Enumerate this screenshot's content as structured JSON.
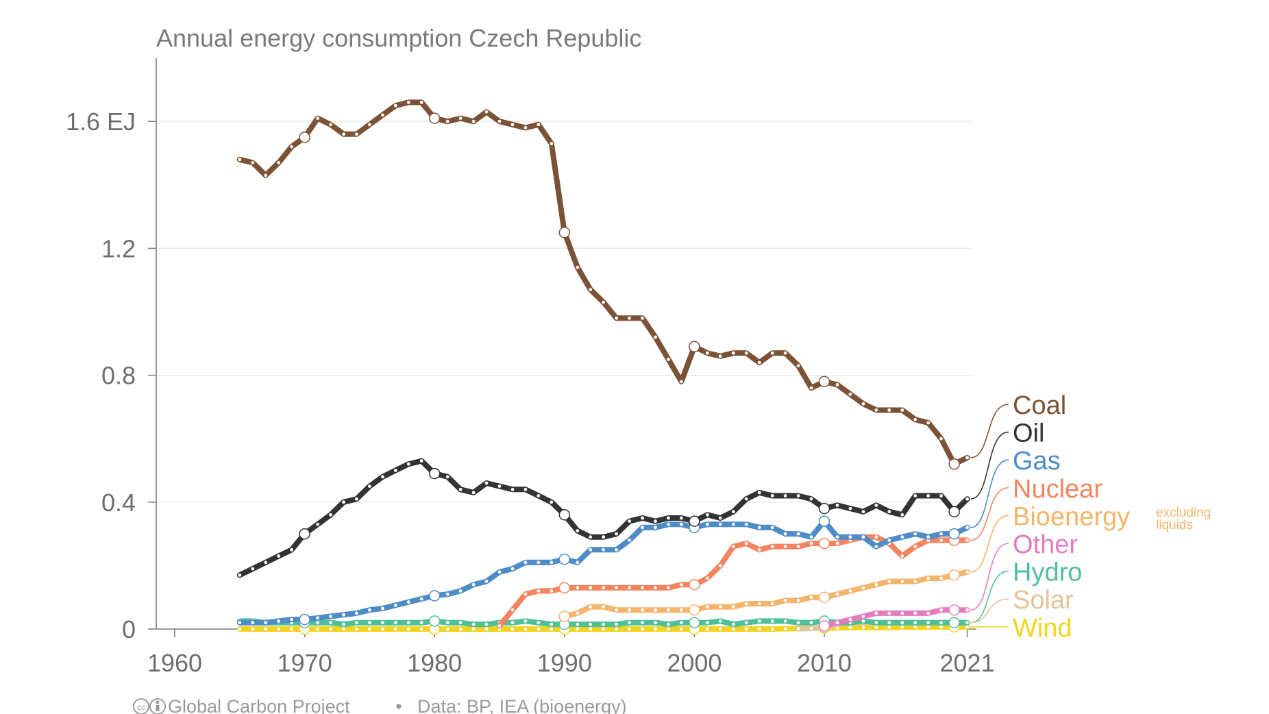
{
  "chart_data": {
    "type": "line",
    "title": "Annual energy consumption Czech Republic",
    "y_unit": "EJ",
    "xlim": [
      1960,
      2021
    ],
    "ylim": [
      0,
      1.8
    ],
    "x_ticks": [
      "1960",
      "1970",
      "1980",
      "1990",
      "2000",
      "2010",
      "2021"
    ],
    "y_ticks": [
      "0",
      "0.4",
      "0.8",
      "1.2",
      "1.6 EJ"
    ],
    "y_tick_values": [
      0,
      0.4,
      0.8,
      1.2,
      1.6
    ],
    "grid": true,
    "legend_placement": "right",
    "legend_note": [
      "excluding",
      "liquids"
    ],
    "footer": {
      "credit": "Global Carbon Project",
      "separator": "•",
      "source": "Data: BP, IEA (bioenergy)"
    },
    "series": [
      {
        "name": "Coal",
        "color": "#7b5236",
        "x_start": 1965,
        "values": [
          1.48,
          1.47,
          1.43,
          1.47,
          1.52,
          1.55,
          1.61,
          1.59,
          1.56,
          1.56,
          1.59,
          1.62,
          1.65,
          1.66,
          1.66,
          1.61,
          1.6,
          1.61,
          1.6,
          1.63,
          1.6,
          1.59,
          1.58,
          1.59,
          1.53,
          1.25,
          1.14,
          1.07,
          1.03,
          0.98,
          0.98,
          0.98,
          0.92,
          0.85,
          0.78,
          0.89,
          0.87,
          0.86,
          0.87,
          0.87,
          0.84,
          0.87,
          0.87,
          0.83,
          0.76,
          0.78,
          0.77,
          0.74,
          0.71,
          0.69,
          0.69,
          0.69,
          0.66,
          0.65,
          0.6,
          0.52,
          0.54
        ]
      },
      {
        "name": "Oil",
        "color": "#333333",
        "x_start": 1965,
        "values": [
          0.17,
          0.19,
          0.21,
          0.23,
          0.25,
          0.3,
          0.33,
          0.36,
          0.4,
          0.41,
          0.45,
          0.48,
          0.5,
          0.52,
          0.53,
          0.49,
          0.48,
          0.44,
          0.43,
          0.46,
          0.45,
          0.44,
          0.44,
          0.42,
          0.4,
          0.36,
          0.31,
          0.29,
          0.29,
          0.3,
          0.34,
          0.35,
          0.34,
          0.35,
          0.35,
          0.34,
          0.36,
          0.35,
          0.37,
          0.41,
          0.43,
          0.42,
          0.42,
          0.42,
          0.41,
          0.38,
          0.39,
          0.38,
          0.37,
          0.39,
          0.37,
          0.36,
          0.42,
          0.42,
          0.42,
          0.37,
          0.41
        ]
      },
      {
        "name": "Gas",
        "color": "#4e8cc7",
        "x_start": 1965,
        "values": [
          0.02,
          0.02,
          0.02,
          0.025,
          0.03,
          0.03,
          0.035,
          0.04,
          0.045,
          0.05,
          0.06,
          0.065,
          0.075,
          0.085,
          0.095,
          0.105,
          0.11,
          0.12,
          0.14,
          0.15,
          0.18,
          0.19,
          0.21,
          0.21,
          0.21,
          0.22,
          0.21,
          0.25,
          0.25,
          0.25,
          0.28,
          0.32,
          0.32,
          0.33,
          0.33,
          0.32,
          0.33,
          0.33,
          0.33,
          0.33,
          0.32,
          0.32,
          0.3,
          0.3,
          0.29,
          0.34,
          0.29,
          0.29,
          0.29,
          0.26,
          0.28,
          0.29,
          0.3,
          0.29,
          0.3,
          0.3,
          0.32
        ]
      },
      {
        "name": "Nuclear",
        "color": "#f4845f",
        "x_start": 1985,
        "values": [
          0.01,
          0.06,
          0.11,
          0.12,
          0.12,
          0.13,
          0.13,
          0.13,
          0.13,
          0.13,
          0.13,
          0.13,
          0.13,
          0.13,
          0.14,
          0.14,
          0.16,
          0.2,
          0.26,
          0.27,
          0.25,
          0.26,
          0.26,
          0.26,
          0.27,
          0.27,
          0.27,
          0.28,
          0.29,
          0.29,
          0.27,
          0.23,
          0.26,
          0.28,
          0.28,
          0.28,
          0.28
        ]
      },
      {
        "name": "Bioenergy",
        "color": "#f5b46b",
        "x_start": 1990,
        "values": [
          0.04,
          0.05,
          0.07,
          0.07,
          0.06,
          0.06,
          0.06,
          0.06,
          0.06,
          0.06,
          0.06,
          0.07,
          0.07,
          0.07,
          0.08,
          0.08,
          0.08,
          0.09,
          0.09,
          0.1,
          0.1,
          0.11,
          0.12,
          0.13,
          0.14,
          0.15,
          0.15,
          0.15,
          0.16,
          0.16,
          0.17,
          0.18
        ]
      },
      {
        "name": "Other",
        "color": "#e57cc0",
        "x_start": 2010,
        "values": [
          0.01,
          0.02,
          0.03,
          0.04,
          0.05,
          0.05,
          0.05,
          0.05,
          0.05,
          0.06,
          0.06,
          0.06
        ]
      },
      {
        "name": "Hydro",
        "color": "#4fbf9a",
        "x_start": 1965,
        "values": [
          0.025,
          0.025,
          0.02,
          0.02,
          0.02,
          0.02,
          0.02,
          0.02,
          0.015,
          0.02,
          0.02,
          0.02,
          0.02,
          0.02,
          0.02,
          0.025,
          0.02,
          0.02,
          0.015,
          0.015,
          0.02,
          0.02,
          0.025,
          0.02,
          0.015,
          0.015,
          0.015,
          0.015,
          0.015,
          0.015,
          0.02,
          0.02,
          0.02,
          0.015,
          0.02,
          0.02,
          0.02,
          0.025,
          0.015,
          0.02,
          0.025,
          0.025,
          0.025,
          0.02,
          0.02,
          0.025,
          0.02,
          0.02,
          0.025,
          0.02,
          0.02,
          0.02,
          0.02,
          0.02,
          0.02,
          0.02,
          0.02
        ]
      },
      {
        "name": "Solar",
        "color": "#e3c599",
        "x_start": 2008,
        "values": [
          0.001,
          0.002,
          0.006,
          0.015,
          0.02,
          0.02,
          0.02,
          0.02,
          0.02,
          0.02,
          0.02,
          0.02,
          0.02,
          0.02
        ]
      },
      {
        "name": "Wind",
        "color": "#f2d41f",
        "x_start": 1965,
        "values": [
          0,
          0,
          0,
          0,
          0,
          0,
          0,
          0,
          0,
          0,
          0,
          0,
          0,
          0,
          0,
          0,
          0,
          0,
          0,
          0,
          0,
          0,
          0,
          0,
          0,
          0,
          0,
          0,
          0,
          0,
          0,
          0,
          0,
          0,
          0,
          0,
          0,
          0,
          0,
          0,
          0,
          0,
          0.001,
          0.002,
          0.003,
          0.003,
          0.004,
          0.005,
          0.005,
          0.005,
          0.005,
          0.006,
          0.006,
          0.006,
          0.007,
          0.007,
          0.007
        ]
      }
    ]
  }
}
